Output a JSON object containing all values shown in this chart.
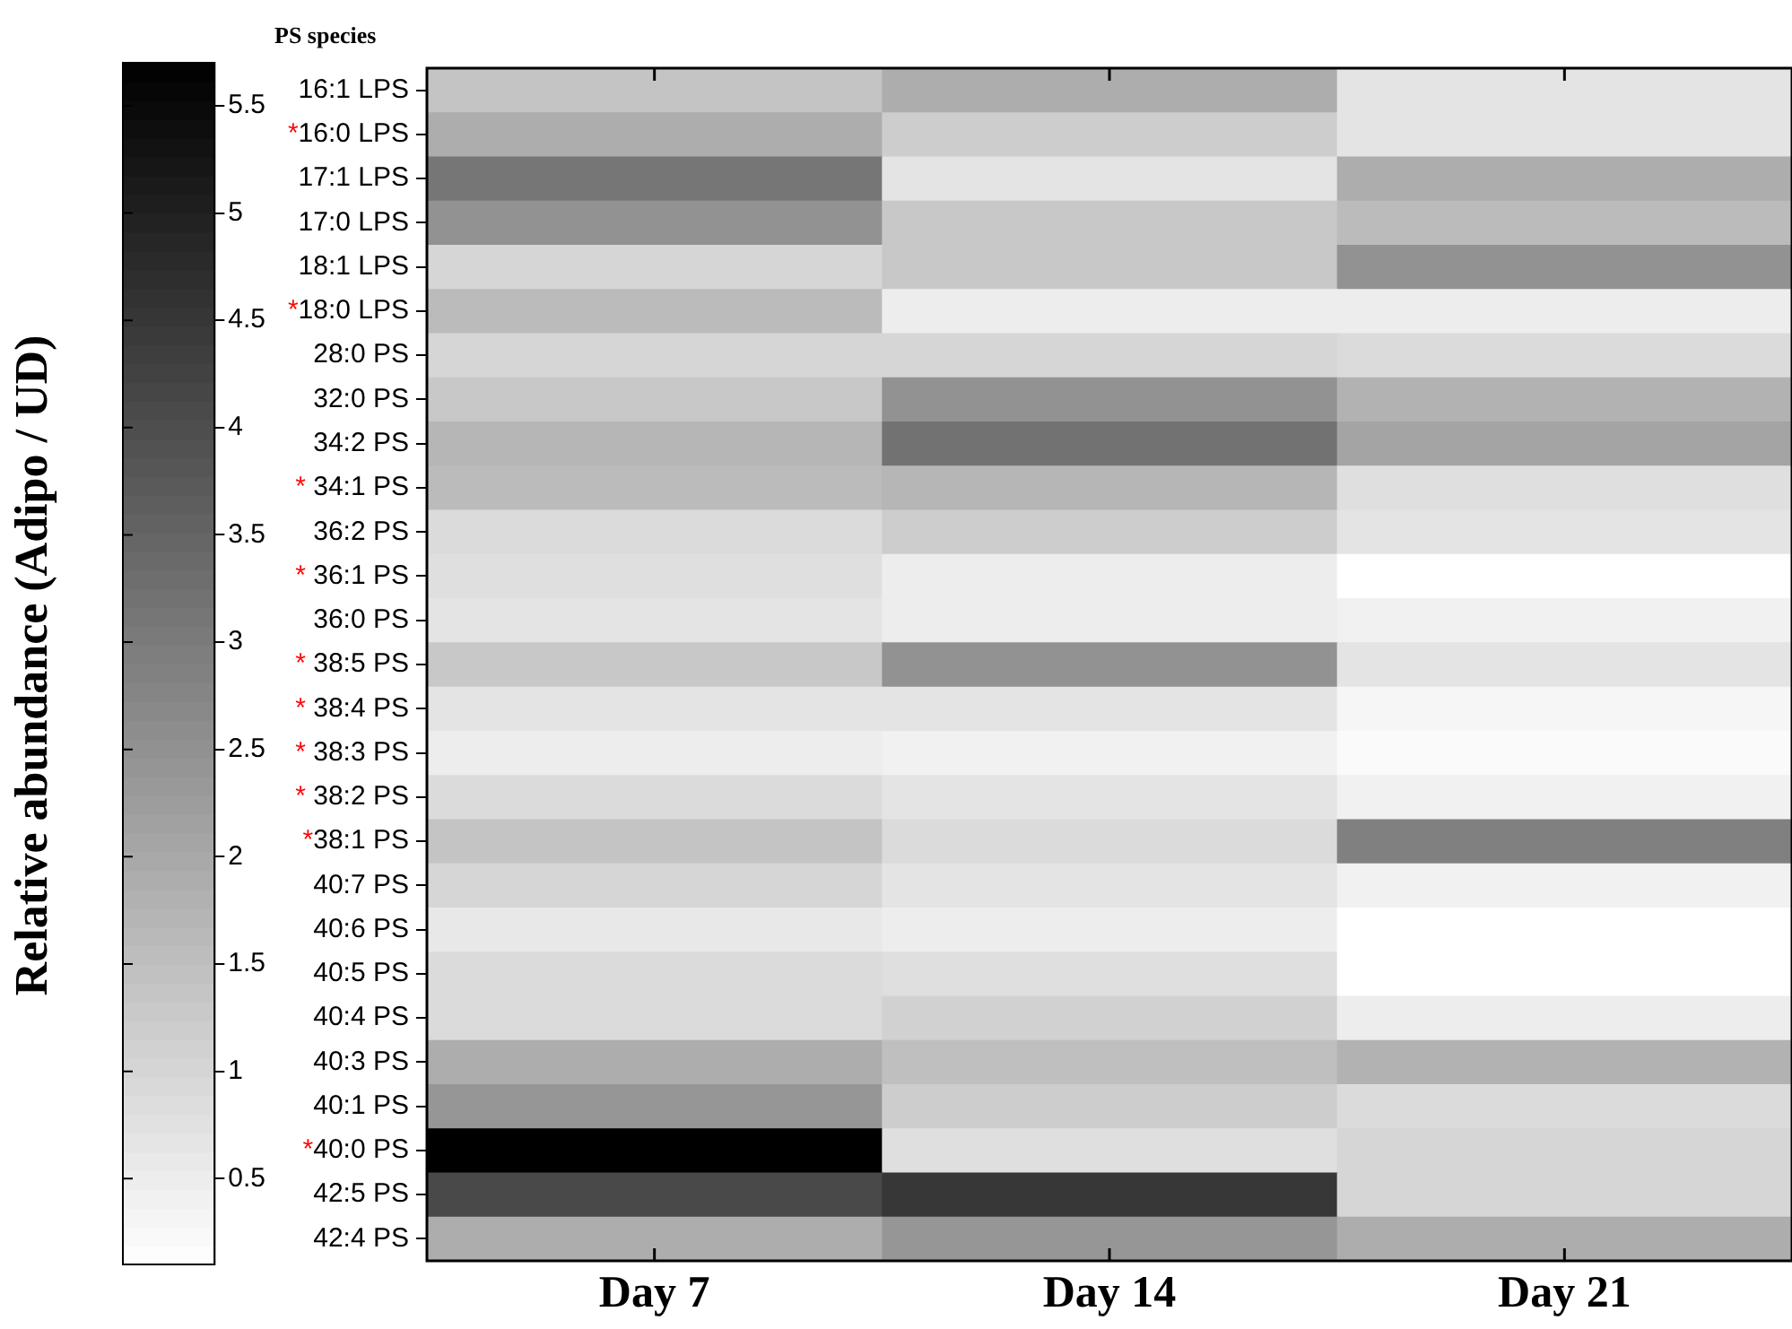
{
  "chart_data": {
    "type": "heatmap",
    "ylabel": "PS species",
    "clabel": "Relative abundance (Adipo / UD)",
    "categories": [
      "Day 7",
      "Day 14",
      "Day 21"
    ],
    "y_categories": [
      "16:1 LPS",
      "*16:0 LPS",
      "17:1 LPS",
      "17:0 LPS",
      "18:1 LPS",
      "*18:0 LPS",
      "28:0 PS",
      "32:0 PS",
      "34:2 PS",
      "* 34:1 PS",
      "36:2 PS",
      "* 36:1 PS",
      "36:0 PS",
      "* 38:5 PS",
      "* 38:4 PS",
      "* 38:3 PS",
      "* 38:2 PS",
      "*38:1 PS",
      "40:7 PS",
      "40:6 PS",
      "40:5 PS",
      "40:4 PS",
      "40:3 PS",
      "40:1 PS",
      "*40:0 PS",
      "42:5 PS",
      "42:4 PS"
    ],
    "cells": [
      [
        1.4,
        1.9,
        0.7
      ],
      [
        1.9,
        1.2,
        0.7
      ],
      [
        3.1,
        0.7,
        1.9
      ],
      [
        2.5,
        1.3,
        1.6
      ],
      [
        1.0,
        1.3,
        2.5
      ],
      [
        1.6,
        0.5,
        0.5
      ],
      [
        1.0,
        1.0,
        0.9
      ],
      [
        1.3,
        2.5,
        1.8
      ],
      [
        1.7,
        3.2,
        2.1
      ],
      [
        1.6,
        1.7,
        0.8
      ],
      [
        0.9,
        1.2,
        0.7
      ],
      [
        0.8,
        0.5,
        0.1
      ],
      [
        0.7,
        0.5,
        0.4
      ],
      [
        1.3,
        2.5,
        0.7
      ],
      [
        0.7,
        0.7,
        0.3
      ],
      [
        0.5,
        0.4,
        0.2
      ],
      [
        0.9,
        0.7,
        0.4
      ],
      [
        1.4,
        0.9,
        2.9
      ],
      [
        1.0,
        0.7,
        0.4
      ],
      [
        0.6,
        0.5,
        0.1
      ],
      [
        0.9,
        0.8,
        0.1
      ],
      [
        0.9,
        1.1,
        0.5
      ],
      [
        1.9,
        1.5,
        1.8
      ],
      [
        2.4,
        1.2,
        0.9
      ],
      [
        5.7,
        0.8,
        1.0
      ],
      [
        4.1,
        4.5,
        1.0
      ],
      [
        1.9,
        2.4,
        1.9
      ]
    ],
    "clim": [
      0.1,
      5.7
    ],
    "cticks": [
      0.5,
      1,
      1.5,
      2,
      2.5,
      3,
      3.5,
      4,
      4.5,
      5,
      5.5
    ]
  }
}
